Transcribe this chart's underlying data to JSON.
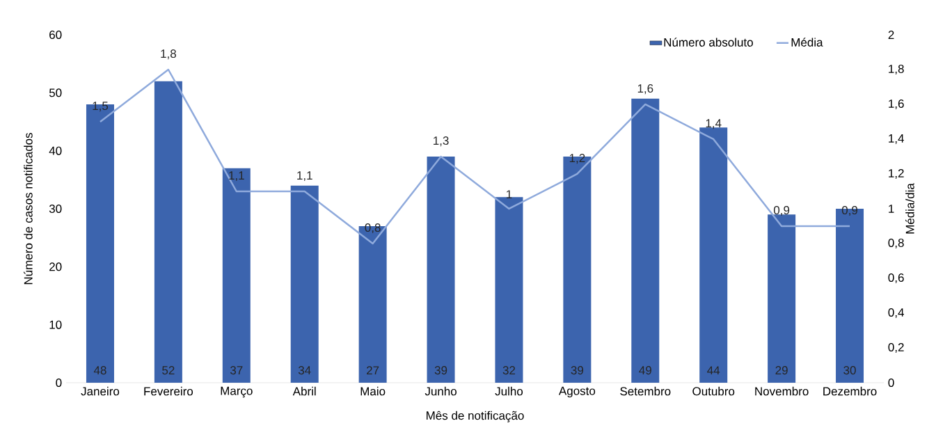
{
  "chart_data": {
    "type": "bar",
    "xlabel": "Mês de notificação",
    "ylabel": "Número de casos notificados",
    "y2label": "Média/dia",
    "categories": [
      "Janeiro",
      "Fevereiro",
      "Março",
      "Abril",
      "Maio",
      "Junho",
      "Julho",
      "Agosto",
      "Setembro",
      "Outubro",
      "Novembro",
      "Dezembro"
    ],
    "series": [
      {
        "name": "Número absoluto",
        "color": "#3c64ae",
        "values": [
          48,
          52,
          37,
          34,
          27,
          39,
          32,
          39,
          49,
          44,
          29,
          30
        ]
      },
      {
        "name": "Média",
        "type": "line",
        "axis": "y2",
        "color": "#8faadc",
        "values": [
          1.5,
          1.8,
          1.1,
          1.1,
          0.8,
          1.3,
          1.0,
          1.2,
          1.6,
          1.4,
          0.9,
          0.9
        ],
        "value_labels": [
          "1,5",
          "1,8",
          "1,1",
          "1,1",
          "0,8",
          "1,3",
          "1",
          "1,2",
          "1,6",
          "1,4",
          "0,9",
          "0,9"
        ]
      }
    ],
    "data_labels": true,
    "ylim": [
      0,
      60
    ],
    "yticks": [
      0,
      10,
      20,
      30,
      40,
      50,
      60
    ],
    "y2lim": [
      0,
      2
    ],
    "y2ticks": [
      0,
      {
        "value": 0.2,
        "label": "0,2"
      },
      {
        "value": 0.4,
        "label": "0,4"
      },
      {
        "value": 0.6,
        "label": "0,6"
      },
      {
        "value": 0.8,
        "label": "0,8"
      },
      1,
      {
        "value": 1.2,
        "label": "1,2"
      },
      {
        "value": 1.4,
        "label": "1,4"
      },
      {
        "value": 1.6,
        "label": "1,6"
      },
      {
        "value": 1.8,
        "label": "1,8"
      },
      2
    ],
    "legend": "top right",
    "grid": false,
    "marker": "none",
    "line_style": "solid"
  }
}
